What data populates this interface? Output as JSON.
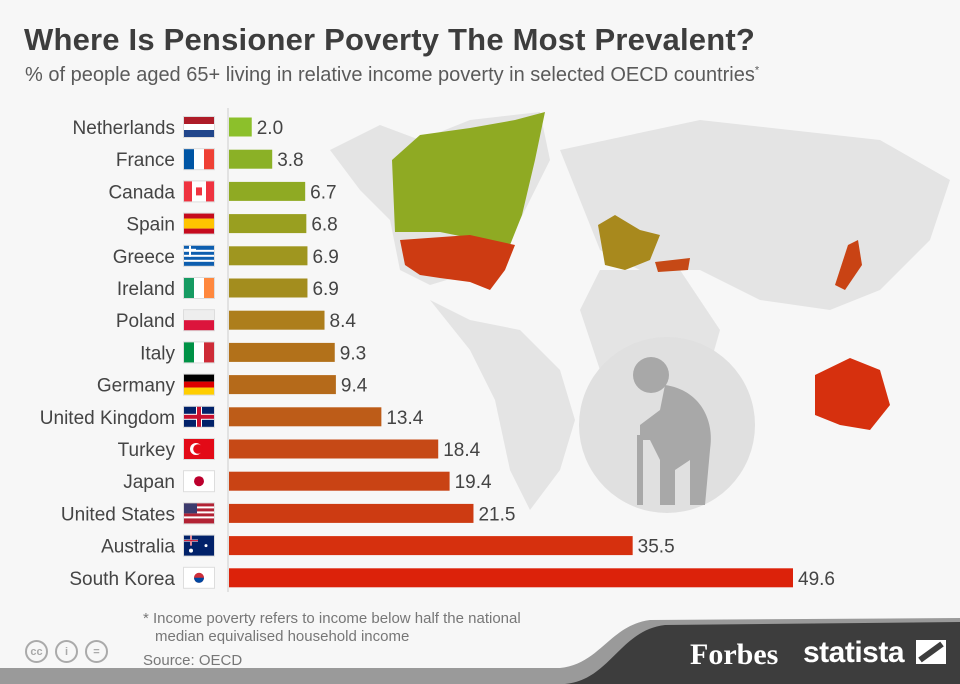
{
  "title": "Where Is Pensioner Poverty The Most Prevalent?",
  "subtitle": "% of people aged 65+ living in relative income poverty in selected OECD countries",
  "subtitle_mark": "*",
  "chart_data": {
    "type": "bar",
    "orientation": "horizontal",
    "title": "Where Is Pensioner Poverty The Most Prevalent?",
    "categories": [
      "Netherlands",
      "France",
      "Canada",
      "Spain",
      "Greece",
      "Ireland",
      "Poland",
      "Italy",
      "Germany",
      "United Kingdom",
      "Turkey",
      "Japan",
      "United States",
      "Australia",
      "South Korea"
    ],
    "values": [
      2.0,
      3.8,
      6.7,
      6.8,
      6.9,
      6.9,
      8.4,
      9.3,
      9.4,
      13.4,
      18.4,
      19.4,
      21.5,
      35.5,
      49.6
    ],
    "value_labels": [
      "2.0",
      "3.8",
      "6.7",
      "6.8",
      "6.9",
      "6.9",
      "8.4",
      "9.3",
      "9.4",
      "13.4",
      "18.4",
      "19.4",
      "21.5",
      "35.5",
      "49.6"
    ],
    "colors": [
      "#8cc02b",
      "#8bb126",
      "#8faa23",
      "#999f20",
      "#9f961f",
      "#a38d1e",
      "#ad7e1c",
      "#b2711a",
      "#b56a1a",
      "#bd5c18",
      "#c64916",
      "#c94314",
      "#cd3b12",
      "#d6300e",
      "#dc220a"
    ],
    "flags": [
      "netherlands-flag",
      "france-flag",
      "canada-flag",
      "spain-flag",
      "greece-flag",
      "ireland-flag",
      "poland-flag",
      "italy-flag",
      "germany-flag",
      "united-kingdom-flag",
      "turkey-flag",
      "japan-flag",
      "united-states-flag",
      "australia-flag",
      "south-korea-flag"
    ],
    "xlim": [
      0,
      50
    ],
    "grid": false
  },
  "footnote_line1": "* Income poverty refers to income below half the national",
  "footnote_line2": "median equivalised household income",
  "source": "Source: OECD",
  "license_icons": [
    "cc",
    "by",
    "nd"
  ],
  "license_glyphs": {
    "cc": "cc",
    "by": "i",
    "nd": "="
  },
  "brand_forbes": "Forbes",
  "brand_statista": "statista"
}
